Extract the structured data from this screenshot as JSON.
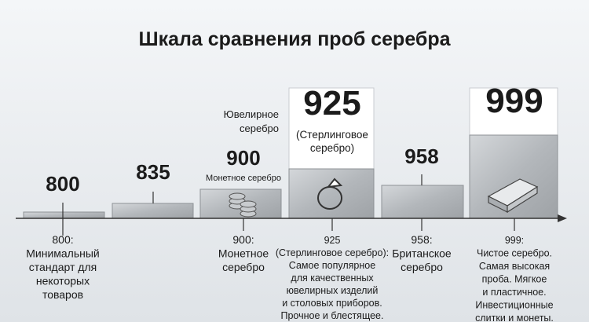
{
  "title": "Шкала сравнения проб серебра",
  "columns": [
    {
      "value": "800",
      "description": [
        "800:",
        "Минимальный",
        "стандарт для",
        "некоторых",
        "товаров"
      ]
    },
    {
      "value": "835"
    },
    {
      "value": "900",
      "caption": [
        "Монетное серебро"
      ],
      "description": [
        "900:",
        "Монетное",
        "серебро"
      ]
    },
    {
      "value": "925",
      "caption": [
        "(Стерлинговое",
        "серебро)"
      ],
      "side_label": [
        "Ювелирное",
        "серебро"
      ],
      "description": [
        "925",
        "(Стерлинговое серебро):",
        "Самое популярное",
        "для качественных",
        "ювелирных изделий",
        "и столовых приборов.",
        "Прочное и блестящее."
      ]
    },
    {
      "value": "958",
      "description": [
        "958:",
        "Британское",
        "серебро"
      ]
    },
    {
      "value": "999",
      "description": [
        "999:",
        "Чистое серебро.",
        "Самая высокая",
        "проба. Мягкое",
        "и пластичное.",
        "Инвестиционные",
        "слитки и монеты."
      ]
    }
  ]
}
